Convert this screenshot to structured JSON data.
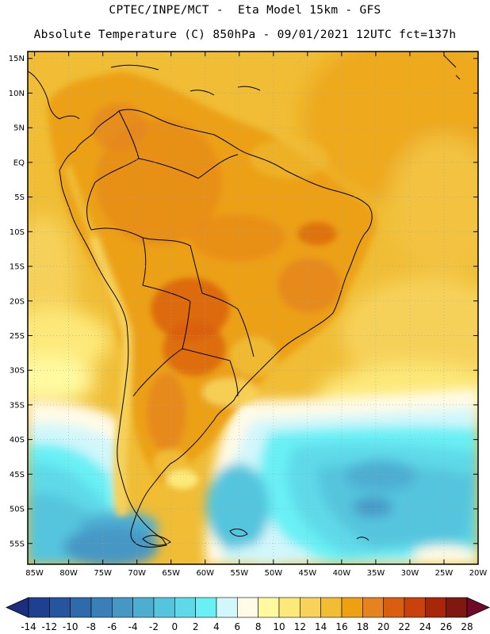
{
  "header": {
    "line1": "CPTEC/INPE/MCT -  Eta Model 15km - GFS",
    "line2": "Absolute Temperature (C) 850hPa - 09/01/2021 12UTC fct=137h"
  },
  "map": {
    "region": "South America",
    "lat_labels": [
      "15N",
      "10N",
      "5N",
      "EQ",
      "5S",
      "10S",
      "15S",
      "20S",
      "25S",
      "30S",
      "35S",
      "40S",
      "45S",
      "50S",
      "55S"
    ],
    "lat_values": [
      15,
      10,
      5,
      0,
      -5,
      -10,
      -15,
      -20,
      -25,
      -30,
      -35,
      -40,
      -45,
      -50,
      -55
    ],
    "lon_labels": [
      "85W",
      "80W",
      "75W",
      "70W",
      "65W",
      "60W",
      "55W",
      "50W",
      "45W",
      "40W",
      "35W",
      "30W",
      "25W",
      "20W"
    ],
    "lon_values": [
      -85,
      -80,
      -75,
      -70,
      -65,
      -60,
      -55,
      -50,
      -45,
      -40,
      -35,
      -30,
      -25,
      -20
    ],
    "lat_range": [
      -58,
      16
    ],
    "lon_range": [
      -86,
      -20
    ]
  },
  "colorbar": {
    "labels": [
      "-14",
      "-12",
      "-10",
      "-8",
      "-6",
      "-4",
      "-2",
      "0",
      "2",
      "4",
      "6",
      "8",
      "10",
      "12",
      "14",
      "16",
      "18",
      "20",
      "22",
      "24",
      "26",
      "28"
    ],
    "colors": [
      "#1f3f8f",
      "#27559d",
      "#2f6aab",
      "#3a80b8",
      "#4797c5",
      "#4eaed2",
      "#55c5de",
      "#5ed9e8",
      "#69f0f5",
      "#d2f7fb",
      "#fffbe6",
      "#fffaa0",
      "#fde97a",
      "#f7d35a",
      "#f0bd35",
      "#eca012",
      "#e5841f",
      "#d95e10",
      "#c9420b",
      "#a8260a",
      "#7f1811"
    ],
    "under_color": "#1d2e80",
    "over_color": "#6e0a28"
  }
}
